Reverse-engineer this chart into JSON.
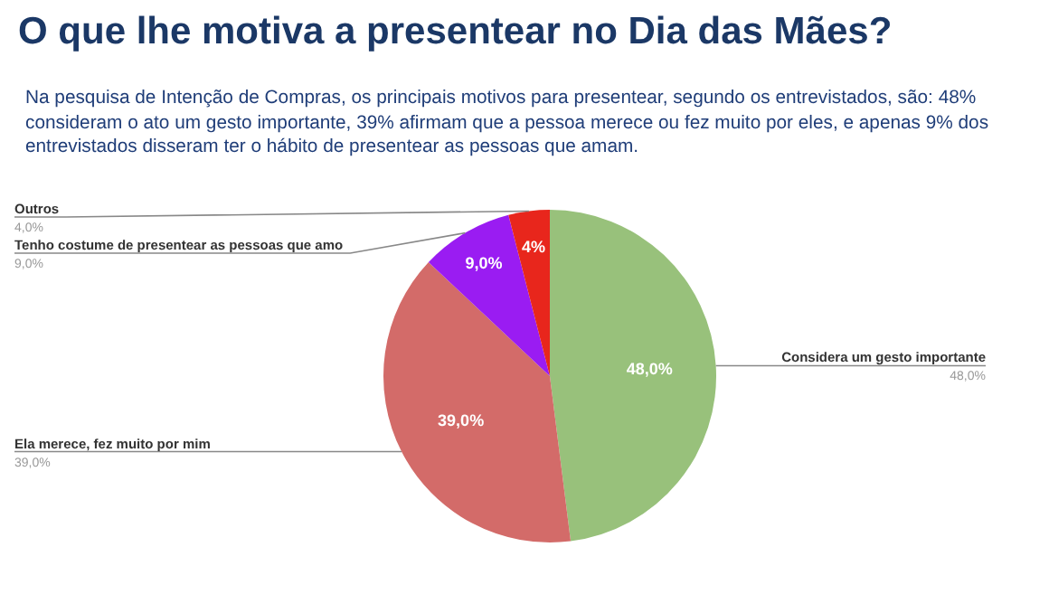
{
  "chart_data": {
    "type": "pie",
    "title": "O que lhe motiva a presentear no Dia das Mães?",
    "subtitle": "Na pesquisa de Intenção de Compras, os principais motivos para presentear, segundo os entrevistados, são: 48% consideram o ato um gesto importante, 39% afirmam que a pessoa merece ou fez muito por eles, e apenas 9% dos entrevistados disseram ter o hábito de presentear as pessoas que amam.",
    "categories": [
      "Considera um gesto importante",
      "Ela merece, fez muito por mim",
      "Tenho costume de presentear as pessoas que amo",
      "Outros"
    ],
    "values": [
      48,
      39,
      9,
      4
    ],
    "colors": [
      "#98c17b",
      "#d36b69",
      "#9a1cf2",
      "#e8261c"
    ],
    "value_labels": [
      "48,0%",
      "39,0%",
      "9,0%",
      "4%"
    ],
    "annotations": [
      "48,0%",
      "39,0%",
      "9,0%",
      "4,0%"
    ],
    "legend": false
  }
}
